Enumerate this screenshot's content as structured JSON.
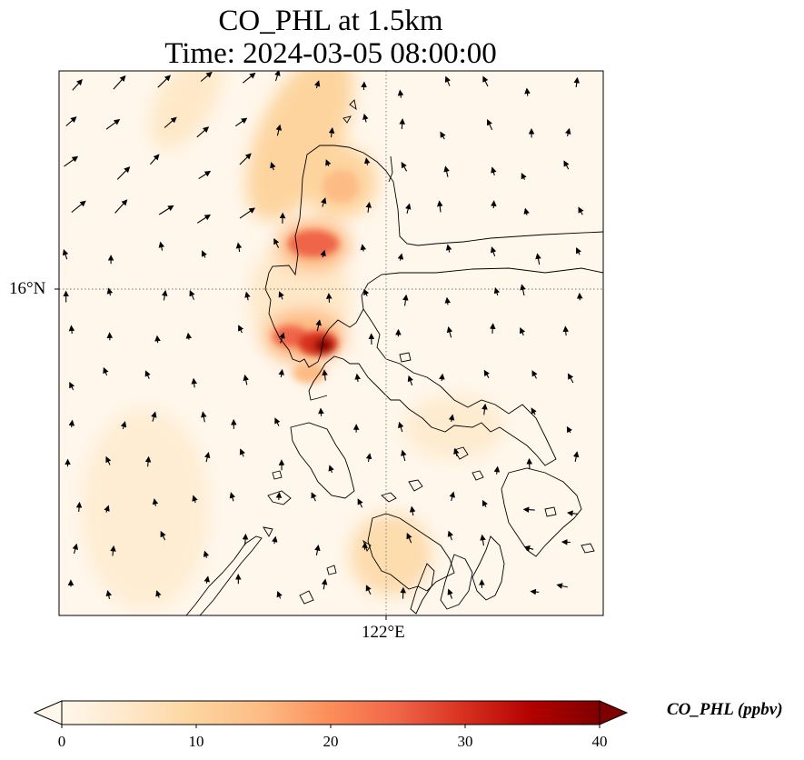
{
  "title": {
    "line1": "CO_PHL at 1.5km",
    "line2": "Time: 2024-03-05 08:00:00"
  },
  "map": {
    "parallel_label": "16°N",
    "meridian_label": "122°E",
    "gridlines": true,
    "features": [
      "coastlines",
      "wind-vectors",
      "co-concentration-field"
    ]
  },
  "colorbar": {
    "label": "CO_PHL (ppbv)",
    "ticks": [
      "0",
      "10",
      "20",
      "30",
      "40"
    ],
    "colormap": "OrRd",
    "stops": [
      "#fff7ec",
      "#fee8c8",
      "#fdd49e",
      "#fdbb84",
      "#fc8d59",
      "#ef6548",
      "#d7301f",
      "#b30000",
      "#7f0000"
    ],
    "extend": "both",
    "range": [
      0,
      40
    ]
  }
}
